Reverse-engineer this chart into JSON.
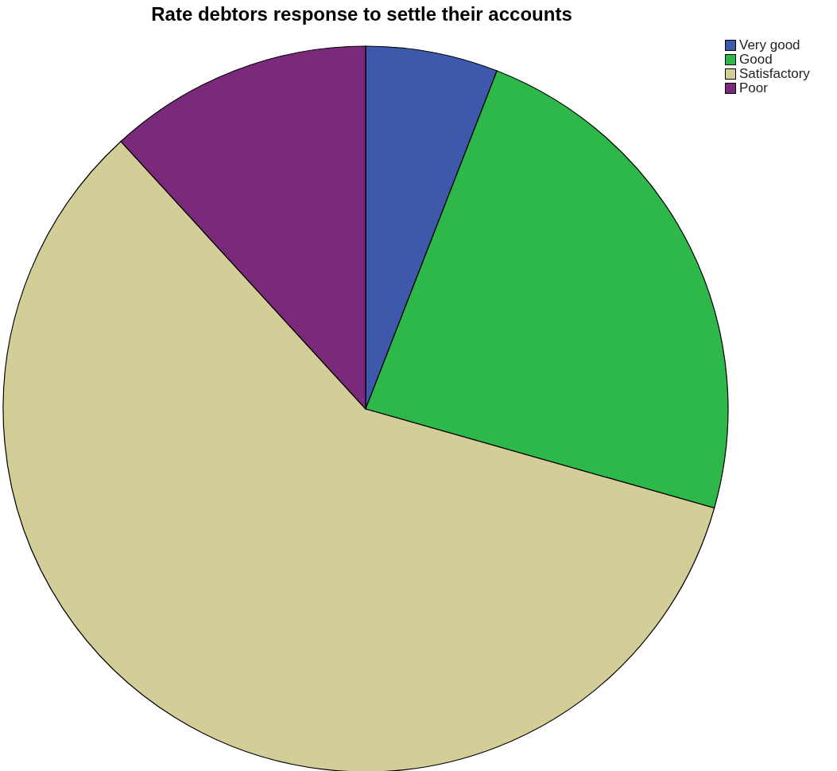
{
  "chart_data": {
    "type": "pie",
    "title": "Rate debtors response to settle their accounts",
    "categories": [
      "Very good",
      "Good",
      "Satisfactory",
      "Poor"
    ],
    "values": [
      5.9,
      23.5,
      58.8,
      11.8
    ],
    "colors": [
      "#3e58ac",
      "#2eb84a",
      "#d3ce97",
      "#7b2a7b"
    ],
    "legend": "top right"
  }
}
